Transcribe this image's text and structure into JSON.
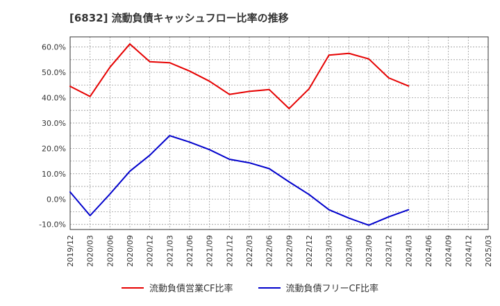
{
  "title": "[6832]  流動負債キャッシュフロー比率の推移",
  "chart_data": {
    "type": "line",
    "x": [
      "2019/12",
      "2020/03",
      "2020/06",
      "2020/09",
      "2020/12",
      "2021/03",
      "2021/06",
      "2021/09",
      "2021/12",
      "2022/03",
      "2022/06",
      "2022/09",
      "2022/12",
      "2023/03",
      "2023/06",
      "2023/09",
      "2023/12",
      "2024/03",
      "2024/06",
      "2024/09",
      "2024/12",
      "2025/03"
    ],
    "ylim": [
      -12,
      64
    ],
    "yticks": [
      -10,
      0,
      10,
      20,
      30,
      40,
      50,
      60
    ],
    "ytick_labels": [
      "-10.0%",
      "0.0%",
      "10.0%",
      "20.0%",
      "30.0%",
      "40.0%",
      "50.0%",
      "60.0%"
    ],
    "grid": true,
    "legend_position": "bottom",
    "series": [
      {
        "name": "流動負債営業CF比率",
        "color": "#e60000",
        "values": [
          44.5,
          40.5,
          52,
          61.2,
          54.2,
          53.8,
          50.5,
          46.5,
          41.3,
          42.5,
          43.2,
          35.7,
          43.5,
          56.8,
          57.5,
          55.3,
          47.8,
          44.6,
          null,
          null,
          null,
          null
        ]
      },
      {
        "name": "流動負債フリーCF比率",
        "color": "#0000cc",
        "values": [
          2.8,
          -6.5,
          2.0,
          11.0,
          17.3,
          25.0,
          22.5,
          19.5,
          15.7,
          14.3,
          12.0,
          6.8,
          1.8,
          -4.2,
          -7.5,
          -10.3,
          -7.0,
          -4.2,
          null,
          null,
          null,
          null
        ]
      }
    ]
  }
}
